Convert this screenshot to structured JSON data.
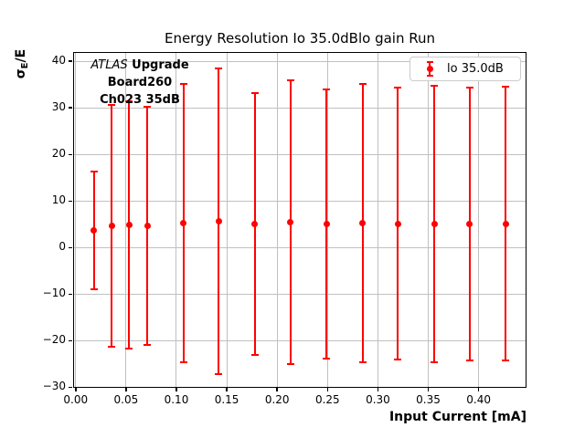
{
  "figure": {
    "title": "Energy Resolution Io 35.0dBlo gain Run"
  },
  "axis": {
    "xlabel": "Input Current [mA]",
    "ylabel_sigma": "σ",
    "ylabel_sub": "E",
    "ylabel_rest": "/E"
  },
  "annotation": {
    "experiment": "ATLAS",
    "tag": "Upgrade",
    "board": "Board260",
    "channel": "Ch023 35dB"
  },
  "legend": {
    "label": "lo 35.0dB"
  },
  "colors": {
    "series": "#ff0000",
    "grid": "#c0c0c0",
    "spine": "#000000",
    "legend_border": "#cccccc"
  },
  "chart_data": {
    "type": "scatter",
    "title": "Energy Resolution Io 35.0dBlo gain Run",
    "xlabel": "Input Current [mA]",
    "ylabel": "σ_E/E",
    "grid": true,
    "legend_position": "upper right",
    "xlim": [
      -0.0025,
      0.4475
    ],
    "ylim": [
      -30.1,
      42.0
    ],
    "xticks": {
      "values": [
        0.0,
        0.05,
        0.1,
        0.15,
        0.2,
        0.25,
        0.3,
        0.35,
        0.4
      ],
      "labels": [
        "0.00",
        "0.05",
        "0.10",
        "0.15",
        "0.20",
        "0.25",
        "0.30",
        "0.35",
        "0.40"
      ]
    },
    "yticks": {
      "values": [
        40,
        30,
        20,
        10,
        0,
        -10,
        -20,
        -30
      ],
      "labels": [
        "40",
        "30",
        "20",
        "10",
        "0",
        "−10",
        "−20",
        "−30"
      ]
    },
    "series": [
      {
        "name": "lo 35.0dB",
        "color": "#ff0000",
        "marker": "circle",
        "x": [
          0.018,
          0.036,
          0.053,
          0.071,
          0.107,
          0.142,
          0.178,
          0.213,
          0.249,
          0.285,
          0.32,
          0.356,
          0.391,
          0.427
        ],
        "y": [
          3.7,
          4.7,
          4.9,
          4.7,
          5.2,
          5.6,
          5.1,
          5.4,
          5.1,
          5.2,
          5.1,
          5.1,
          5.1,
          5.1
        ],
        "yerr": [
          12.6,
          26.0,
          26.5,
          25.5,
          29.9,
          32.8,
          28.1,
          30.5,
          28.9,
          29.9,
          29.2,
          29.7,
          29.3,
          29.4
        ]
      }
    ]
  }
}
